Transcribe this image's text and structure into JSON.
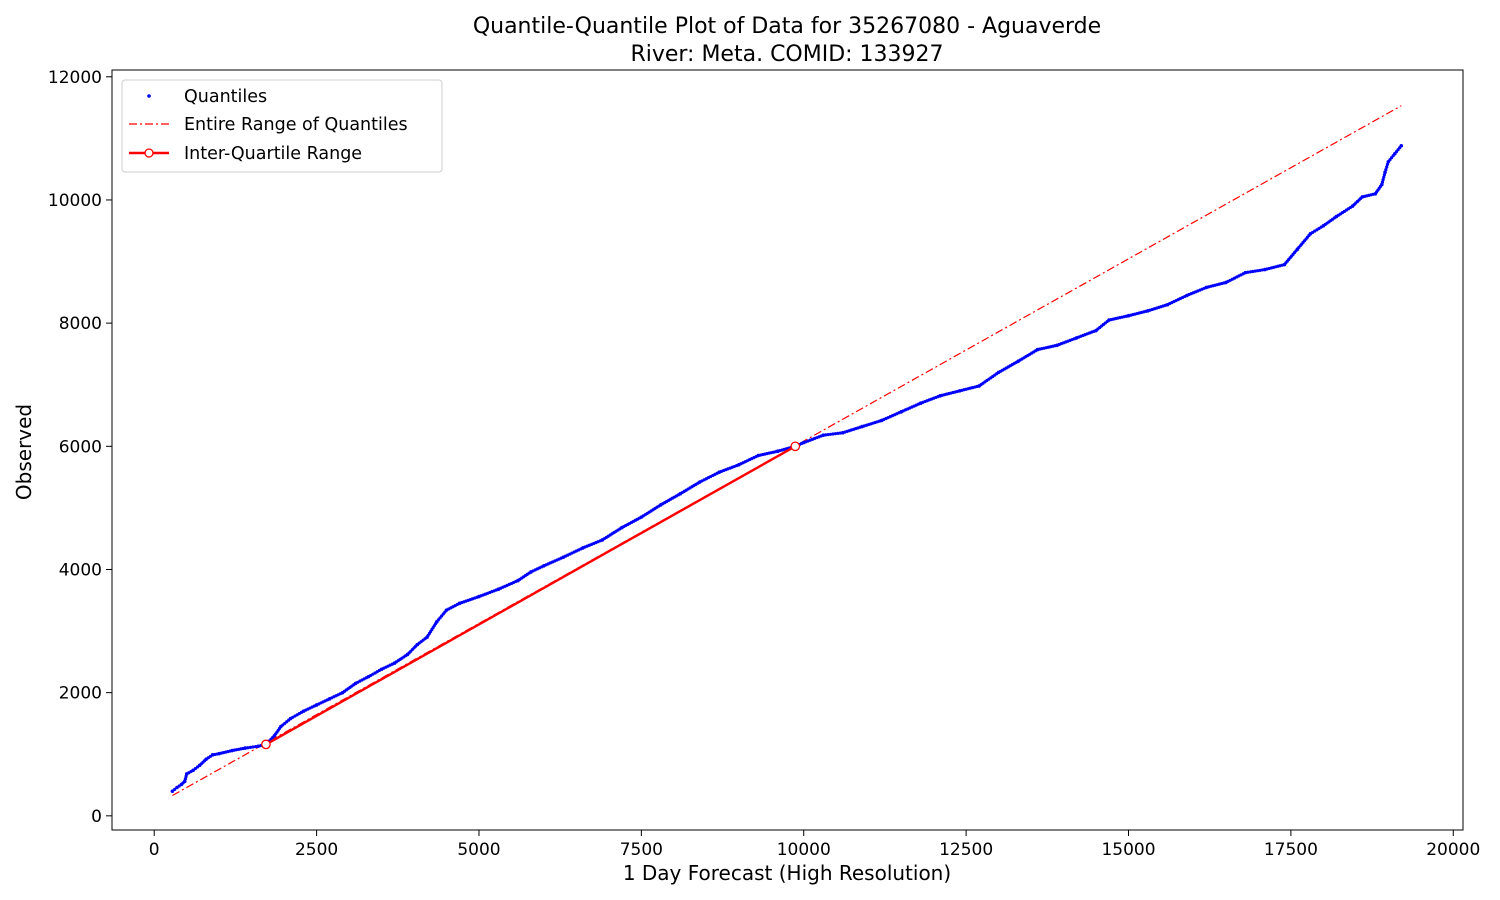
{
  "chart_data": {
    "type": "scatter",
    "title_line1": "Quantile-Quantile Plot of Data for 35267080 - Aguaverde",
    "title_line2": "River: Meta. COMID: 133927",
    "xlabel": "1 Day Forecast (High Resolution)",
    "ylabel": "Observed",
    "xlim": [
      -650,
      20150
    ],
    "ylim": [
      -230,
      12110
    ],
    "xticks": [
      0,
      2500,
      5000,
      7500,
      10000,
      12500,
      15000,
      17500,
      20000
    ],
    "xtick_labels": [
      "0",
      "2500",
      "5000",
      "7500",
      "10000",
      "12500",
      "15000",
      "17500",
      "20000"
    ],
    "yticks": [
      0,
      2000,
      4000,
      6000,
      8000,
      10000,
      12000
    ],
    "ytick_labels": [
      "0",
      "2000",
      "4000",
      "6000",
      "8000",
      "10000",
      "12000"
    ],
    "legend_position": "top-left",
    "legend": [
      "Quantiles",
      "Entire Range of Quantiles",
      "Inter-Quartile Range"
    ],
    "series": [
      {
        "name": "Quantiles",
        "style": "points",
        "color": "#0000ff",
        "points": [
          [
            280,
            400
          ],
          [
            350,
            460
          ],
          [
            420,
            510
          ],
          [
            470,
            560
          ],
          [
            500,
            680
          ],
          [
            600,
            740
          ],
          [
            700,
            820
          ],
          [
            800,
            920
          ],
          [
            900,
            990
          ],
          [
            1000,
            1010
          ],
          [
            1200,
            1060
          ],
          [
            1400,
            1100
          ],
          [
            1600,
            1130
          ],
          [
            1720,
            1160
          ],
          [
            1850,
            1300
          ],
          [
            1950,
            1450
          ],
          [
            2100,
            1580
          ],
          [
            2300,
            1700
          ],
          [
            2500,
            1800
          ],
          [
            2700,
            1900
          ],
          [
            2900,
            2000
          ],
          [
            3100,
            2150
          ],
          [
            3300,
            2260
          ],
          [
            3500,
            2380
          ],
          [
            3700,
            2480
          ],
          [
            3900,
            2620
          ],
          [
            4050,
            2780
          ],
          [
            4200,
            2900
          ],
          [
            4350,
            3150
          ],
          [
            4500,
            3340
          ],
          [
            4700,
            3450
          ],
          [
            5000,
            3560
          ],
          [
            5300,
            3680
          ],
          [
            5600,
            3820
          ],
          [
            5800,
            3960
          ],
          [
            6000,
            4060
          ],
          [
            6300,
            4200
          ],
          [
            6600,
            4350
          ],
          [
            6900,
            4480
          ],
          [
            7200,
            4680
          ],
          [
            7500,
            4850
          ],
          [
            7800,
            5050
          ],
          [
            8100,
            5230
          ],
          [
            8400,
            5420
          ],
          [
            8700,
            5580
          ],
          [
            9000,
            5700
          ],
          [
            9300,
            5850
          ],
          [
            9600,
            5920
          ],
          [
            9870,
            6000
          ],
          [
            10000,
            6060
          ],
          [
            10300,
            6180
          ],
          [
            10600,
            6220
          ],
          [
            10900,
            6320
          ],
          [
            11200,
            6420
          ],
          [
            11500,
            6560
          ],
          [
            11800,
            6700
          ],
          [
            12100,
            6820
          ],
          [
            12400,
            6900
          ],
          [
            12700,
            6980
          ],
          [
            13000,
            7200
          ],
          [
            13300,
            7380
          ],
          [
            13600,
            7570
          ],
          [
            13900,
            7640
          ],
          [
            14200,
            7760
          ],
          [
            14500,
            7880
          ],
          [
            14700,
            8050
          ],
          [
            15000,
            8120
          ],
          [
            15300,
            8200
          ],
          [
            15600,
            8300
          ],
          [
            15900,
            8450
          ],
          [
            16200,
            8580
          ],
          [
            16500,
            8660
          ],
          [
            16800,
            8820
          ],
          [
            17100,
            8870
          ],
          [
            17400,
            8950
          ],
          [
            17600,
            9200
          ],
          [
            17800,
            9450
          ],
          [
            18000,
            9580
          ],
          [
            18200,
            9730
          ],
          [
            18450,
            9900
          ],
          [
            18600,
            10050
          ],
          [
            18800,
            10100
          ],
          [
            18900,
            10250
          ],
          [
            18950,
            10450
          ],
          [
            19000,
            10620
          ],
          [
            19100,
            10750
          ],
          [
            19200,
            10880
          ]
        ]
      },
      {
        "name": "Entire Range of Quantiles",
        "style": "dash-dot",
        "color": "#ff0000",
        "points": [
          [
            280,
            330
          ],
          [
            19200,
            11530
          ]
        ]
      },
      {
        "name": "Inter-Quartile Range",
        "style": "line-markers",
        "color": "#ff0000",
        "points": [
          [
            1720,
            1160
          ],
          [
            9870,
            6000
          ]
        ]
      }
    ]
  }
}
